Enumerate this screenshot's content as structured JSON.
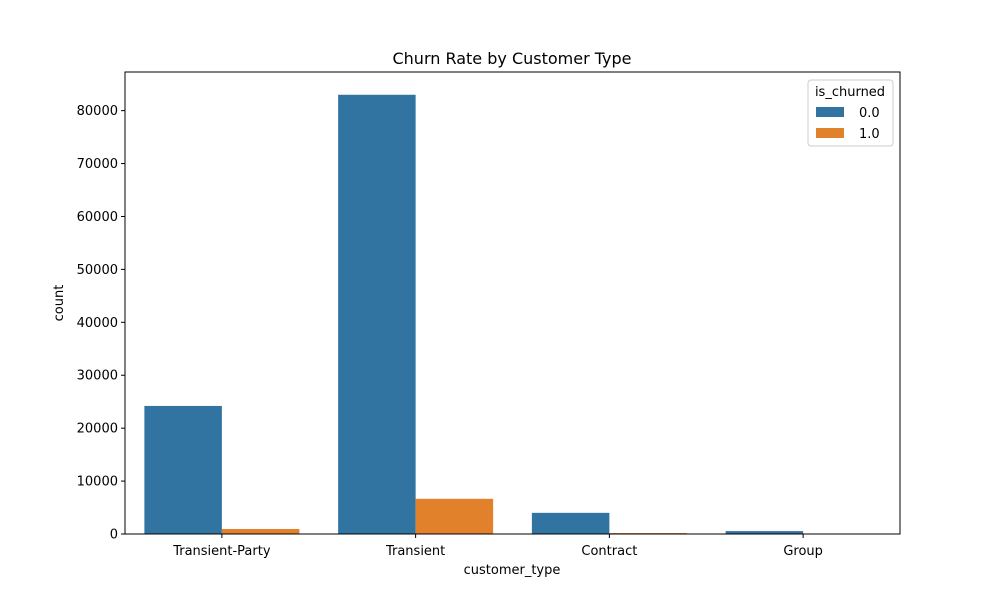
{
  "chart_data": {
    "type": "bar",
    "title": "Churn Rate by Customer Type",
    "xlabel": "customer_type",
    "ylabel": "count",
    "categories": [
      "Transient-Party",
      "Transient",
      "Contract",
      "Group"
    ],
    "series": [
      {
        "name": "0.0",
        "color": "#3274a1",
        "values": [
          24200,
          83000,
          4000,
          550
        ]
      },
      {
        "name": "1.0",
        "color": "#e1812c",
        "values": [
          950,
          6650,
          170,
          25
        ]
      }
    ],
    "ylim": [
      0,
      87300
    ],
    "yticks": [
      0,
      10000,
      20000,
      30000,
      40000,
      50000,
      60000,
      70000,
      80000
    ],
    "ytick_labels": [
      "0",
      "10000",
      "20000",
      "30000",
      "40000",
      "50000",
      "60000",
      "70000",
      "80000"
    ],
    "legend": {
      "title": "is_churned",
      "placement": "top-right"
    },
    "grid": false
  }
}
